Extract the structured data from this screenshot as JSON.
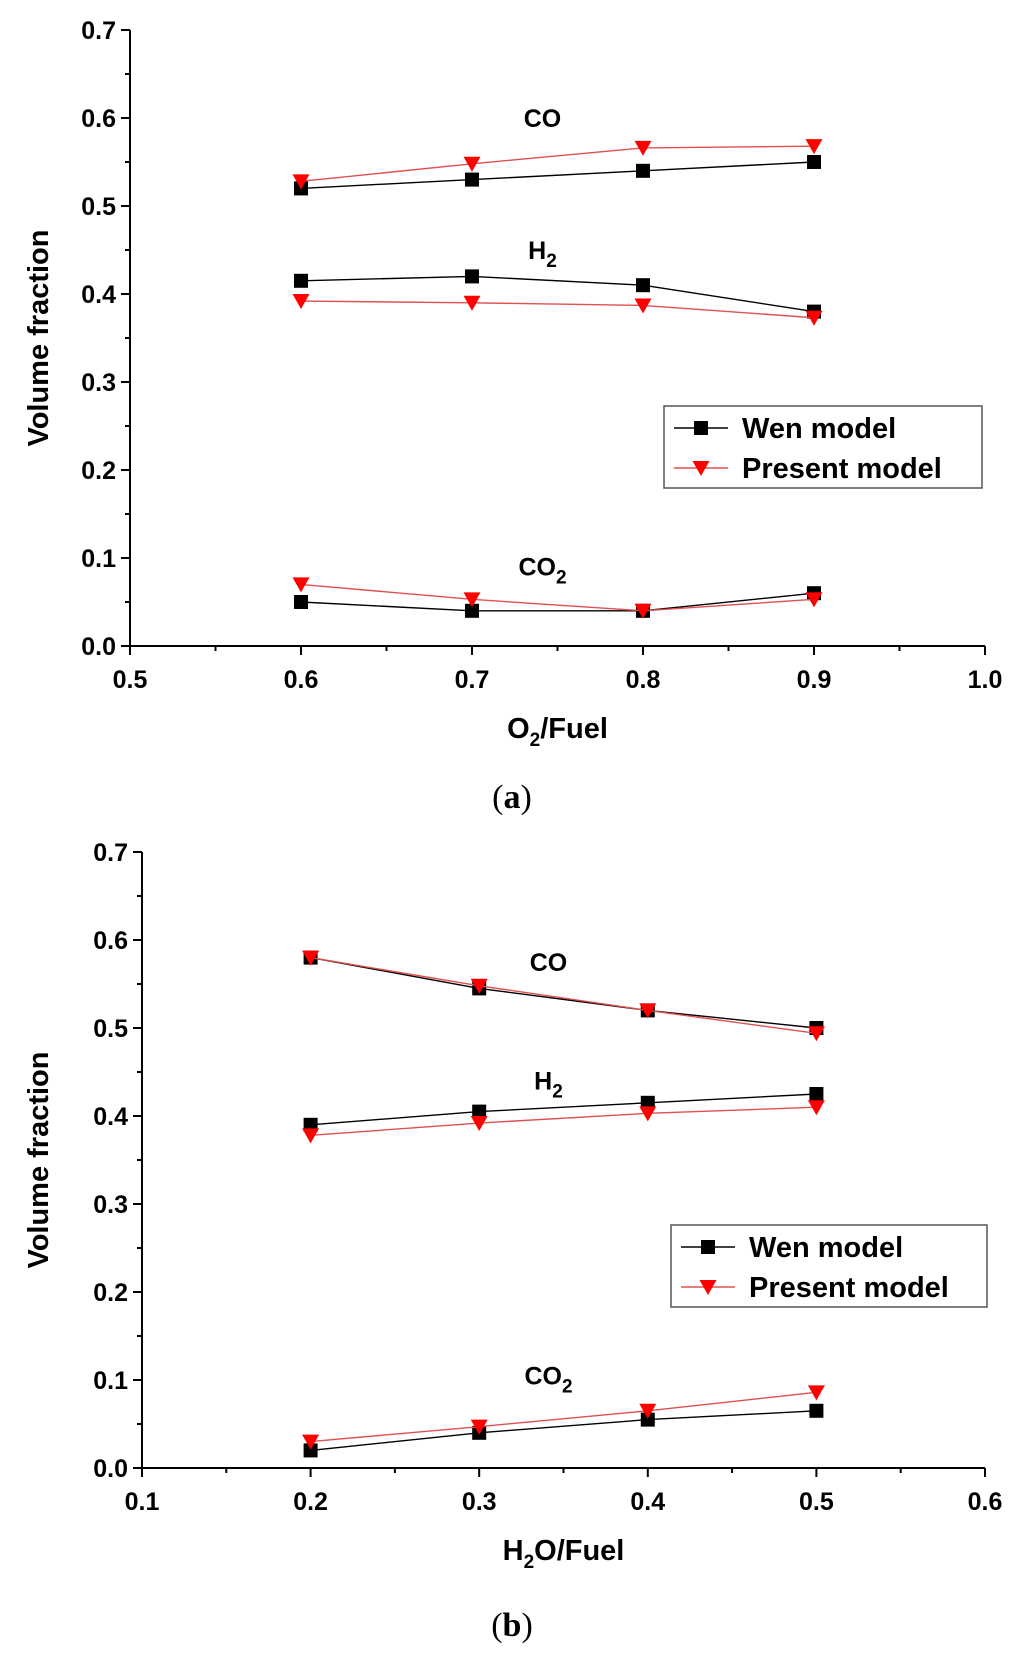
{
  "chart_data": [
    {
      "type": "line",
      "panel_label": "a",
      "xlabel": "O2/Fuel",
      "xlabel_parts": {
        "main": "O",
        "sub": "2",
        "rest": "/Fuel"
      },
      "ylabel": "Volume fraction",
      "xlim": [
        0.5,
        1.0
      ],
      "ylim": [
        0.0,
        0.7
      ],
      "xticks": [
        "0.5",
        "0.6",
        "0.7",
        "0.8",
        "0.9",
        "1.0"
      ],
      "yticks": [
        "0.0",
        "0.1",
        "0.2",
        "0.3",
        "0.4",
        "0.5",
        "0.6",
        "0.7"
      ],
      "x": [
        0.6,
        0.7,
        0.8,
        0.9
      ],
      "legend": [
        "Wen model",
        "Present model"
      ],
      "legend_position": "center-right",
      "series": [
        {
          "name": "Wen model CO",
          "model": "Wen model",
          "species": "CO",
          "values": [
            0.52,
            0.53,
            0.54,
            0.55
          ]
        },
        {
          "name": "Present model CO",
          "model": "Present model",
          "species": "CO",
          "values": [
            0.528,
            0.548,
            0.566,
            0.568
          ]
        },
        {
          "name": "Wen model H2",
          "model": "Wen model",
          "species": "H2",
          "values": [
            0.415,
            0.42,
            0.41,
            0.38
          ]
        },
        {
          "name": "Present model H2",
          "model": "Present model",
          "species": "H2",
          "values": [
            0.392,
            0.39,
            0.387,
            0.373
          ]
        },
        {
          "name": "Wen model CO2",
          "model": "Wen model",
          "species": "CO2",
          "values": [
            0.05,
            0.04,
            0.04,
            0.06
          ]
        },
        {
          "name": "Present model CO2",
          "model": "Present model",
          "species": "CO2",
          "values": [
            0.07,
            0.053,
            0.04,
            0.053
          ]
        }
      ],
      "annotations": [
        {
          "text": "CO",
          "main": "CO",
          "sub": "",
          "x": 0.75,
          "y": 0.59
        },
        {
          "text": "H2",
          "main": "H",
          "sub": "2",
          "x": 0.75,
          "y": 0.44
        },
        {
          "text": "CO2",
          "main": "CO",
          "sub": "2",
          "x": 0.75,
          "y": 0.08
        }
      ]
    },
    {
      "type": "line",
      "panel_label": "b",
      "xlabel": "H2O/Fuel",
      "xlabel_parts": {
        "main": "H",
        "sub": "2",
        "rest": "O/Fuel"
      },
      "ylabel": "Volume fraction",
      "xlim": [
        0.1,
        0.6
      ],
      "ylim": [
        0.0,
        0.7
      ],
      "xticks": [
        "0.1",
        "0.2",
        "0.3",
        "0.4",
        "0.5",
        "0.6"
      ],
      "yticks": [
        "0.0",
        "0.1",
        "0.2",
        "0.3",
        "0.4",
        "0.5",
        "0.6",
        "0.7"
      ],
      "x": [
        0.2,
        0.3,
        0.4,
        0.5
      ],
      "legend": [
        "Wen model",
        "Present model"
      ],
      "legend_position": "center-right",
      "series": [
        {
          "name": "Wen model CO",
          "model": "Wen model",
          "species": "CO",
          "values": [
            0.58,
            0.545,
            0.52,
            0.5
          ]
        },
        {
          "name": "Present model CO",
          "model": "Present model",
          "species": "CO",
          "values": [
            0.58,
            0.548,
            0.52,
            0.494
          ]
        },
        {
          "name": "Wen model H2",
          "model": "Wen model",
          "species": "H2",
          "values": [
            0.39,
            0.405,
            0.415,
            0.425
          ]
        },
        {
          "name": "Present model H2",
          "model": "Present model",
          "species": "H2",
          "values": [
            0.378,
            0.392,
            0.403,
            0.41
          ]
        },
        {
          "name": "Wen model CO2",
          "model": "Wen model",
          "species": "CO2",
          "values": [
            0.02,
            0.04,
            0.055,
            0.065
          ]
        },
        {
          "name": "Present model CO2",
          "model": "Present model",
          "species": "CO2",
          "values": [
            0.03,
            0.047,
            0.065,
            0.086
          ]
        }
      ],
      "annotations": [
        {
          "text": "CO",
          "main": "CO",
          "sub": "",
          "x": 0.35,
          "y": 0.565
        },
        {
          "text": "H2",
          "main": "H",
          "sub": "2",
          "x": 0.35,
          "y": 0.43
        },
        {
          "text": "CO2",
          "main": "CO",
          "sub": "2",
          "x": 0.35,
          "y": 0.095
        }
      ]
    }
  ],
  "colors": {
    "wen": "#000000",
    "present": "#ff0000",
    "wen_line": "#000000",
    "present_line": "#e05050"
  }
}
